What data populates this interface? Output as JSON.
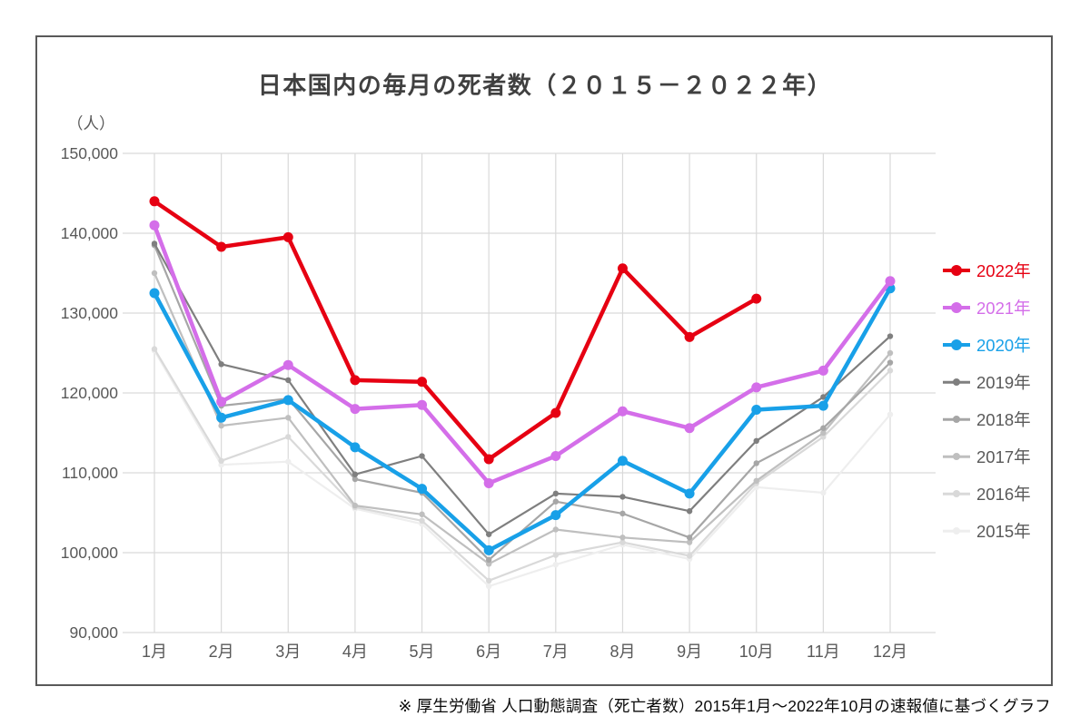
{
  "chart_data": {
    "type": "line",
    "title": "日本国内の毎月の死者数（２０１５－２０２２年）",
    "y_unit": "（人）",
    "source_note": "※ 厚生労働省 人口動態調査（死亡者数）2015年1月～2022年10月の速報値に基づくグラフ",
    "categories": [
      "1月",
      "2月",
      "3月",
      "4月",
      "5月",
      "6月",
      "7月",
      "8月",
      "9月",
      "10月",
      "11月",
      "12月"
    ],
    "y_tick_labels": [
      "150,000",
      "140,000",
      "130,000",
      "120,000",
      "110,000",
      "100,000",
      "90,000"
    ],
    "ylim": [
      90000,
      150000
    ],
    "grid": true,
    "legend_position": "right",
    "series": [
      {
        "name": "2022年",
        "color": "#e60012",
        "label_color": "#e60012",
        "emphasis": true,
        "values": [
          144000,
          138300,
          139500,
          121600,
          121400,
          111700,
          117500,
          135600,
          127000,
          131800,
          null,
          null
        ]
      },
      {
        "name": "2021年",
        "color": "#d46ee9",
        "label_color": "#d46ee9",
        "emphasis": true,
        "values": [
          141000,
          118900,
          123500,
          118000,
          118500,
          108700,
          112100,
          117700,
          115600,
          120700,
          122800,
          134000
        ]
      },
      {
        "name": "2020年",
        "color": "#18a0e8",
        "label_color": "#18a0e8",
        "emphasis": true,
        "values": [
          132500,
          116900,
          119100,
          113200,
          108000,
          100300,
          104700,
          111500,
          107400,
          117900,
          118400,
          133100
        ]
      },
      {
        "name": "2019年",
        "color": "#7f7f7f",
        "label_color": "#595959",
        "emphasis": false,
        "values": [
          138700,
          123600,
          121600,
          109800,
          112100,
          102300,
          107400,
          107000,
          105200,
          114000,
          119500,
          127100
        ]
      },
      {
        "name": "2018年",
        "color": "#a6a6a6",
        "label_color": "#595959",
        "emphasis": false,
        "values": [
          138500,
          118400,
          119300,
          109200,
          107500,
          99100,
          106400,
          104900,
          101900,
          111200,
          115600,
          123800
        ]
      },
      {
        "name": "2017年",
        "color": "#bfbfbf",
        "label_color": "#595959",
        "emphasis": false,
        "values": [
          135000,
          115900,
          116900,
          105900,
          104800,
          98600,
          102900,
          101900,
          101300,
          109000,
          115000,
          125000
        ]
      },
      {
        "name": "2016年",
        "color": "#d9d9d9",
        "label_color": "#595959",
        "emphasis": false,
        "values": [
          125500,
          111500,
          114500,
          105700,
          104000,
          96500,
          99700,
          101300,
          99600,
          108700,
          114500,
          122800
        ]
      },
      {
        "name": "2015年",
        "color": "#eeeeee",
        "label_color": "#595959",
        "emphasis": false,
        "values": [
          125300,
          111000,
          111400,
          105500,
          103600,
          95800,
          98500,
          101000,
          99200,
          108200,
          107500,
          117300
        ]
      }
    ],
    "style": {
      "grid_color": "#d9d9d9",
      "axis_text_color": "#595959",
      "frame_border_color": "#595959",
      "title_color": "#404040"
    }
  }
}
